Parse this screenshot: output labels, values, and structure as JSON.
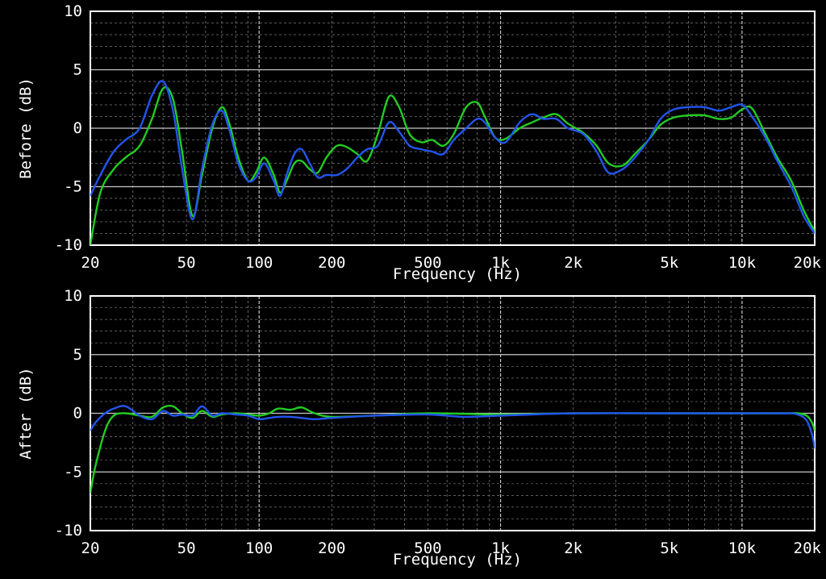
{
  "colors": {
    "background": "#000000",
    "grid": "#7a7a7a",
    "axis": "#ffffff",
    "text": "#ffffff"
  },
  "chart_data": [
    {
      "type": "line",
      "title": "",
      "xlabel": "Frequency (Hz)",
      "ylabel": "Before (dB)",
      "xscale": "log",
      "xlim": [
        20,
        20000
      ],
      "ylim": [
        -10,
        10
      ],
      "xtick_labels": [
        {
          "value": 20,
          "label": "20"
        },
        {
          "value": 50,
          "label": "50"
        },
        {
          "value": 100,
          "label": "100"
        },
        {
          "value": 200,
          "label": "200"
        },
        {
          "value": 500,
          "label": "500"
        },
        {
          "value": 1000,
          "label": "1k"
        },
        {
          "value": 2000,
          "label": "2k"
        },
        {
          "value": 5000,
          "label": "5k"
        },
        {
          "value": 10000,
          "label": "10k"
        },
        {
          "value": 20000,
          "label": "20k"
        }
      ],
      "yticks": [
        10,
        5,
        0,
        -5,
        -10
      ],
      "grid": true,
      "series": [
        {
          "color": "#22cc22",
          "x": [
            20,
            22,
            25,
            28,
            32,
            36,
            40,
            44,
            48,
            53,
            58,
            64,
            70,
            75,
            82,
            90,
            97,
            105,
            115,
            122,
            130,
            140,
            150,
            162,
            175,
            190,
            210,
            230,
            255,
            280,
            310,
            345,
            380,
            420,
            470,
            520,
            580,
            640,
            720,
            800,
            860,
            950,
            1050,
            1200,
            1350,
            1500,
            1700,
            1900,
            2200,
            2500,
            2800,
            3200,
            3600,
            4100,
            4600,
            5200,
            6000,
            7000,
            8000,
            9000,
            10000,
            11000,
            12500,
            14000,
            16000,
            18000,
            20000
          ],
          "y": [
            -10,
            -5.5,
            -3.5,
            -2.5,
            -1.5,
            0.8,
            3.4,
            2.5,
            -2.0,
            -7.5,
            -4.0,
            0.0,
            1.8,
            0.5,
            -2.5,
            -4.5,
            -3.8,
            -2.5,
            -4.0,
            -5.5,
            -4.5,
            -3.0,
            -2.8,
            -3.5,
            -3.8,
            -2.5,
            -1.5,
            -1.6,
            -2.2,
            -2.8,
            -0.5,
            2.7,
            1.8,
            -0.5,
            -1.2,
            -1.0,
            -1.5,
            -0.5,
            1.8,
            2.2,
            1.0,
            -0.8,
            -0.9,
            0.0,
            0.5,
            0.9,
            1.2,
            0.4,
            -0.4,
            -1.5,
            -3.0,
            -3.2,
            -2.2,
            -1.0,
            0.3,
            0.9,
            1.1,
            1.1,
            0.8,
            0.9,
            1.6,
            1.7,
            -0.5,
            -2.5,
            -4.5,
            -7.0,
            -8.8
          ]
        },
        {
          "color": "#2255ee",
          "x": [
            20,
            22,
            25,
            28,
            32,
            36,
            40,
            44,
            48,
            53,
            58,
            64,
            70,
            75,
            82,
            90,
            97,
            105,
            115,
            122,
            130,
            140,
            150,
            162,
            175,
            190,
            210,
            230,
            255,
            280,
            310,
            345,
            380,
            420,
            470,
            520,
            580,
            640,
            720,
            800,
            860,
            950,
            1050,
            1200,
            1350,
            1500,
            1700,
            1900,
            2200,
            2500,
            2800,
            3200,
            3600,
            4100,
            4600,
            5200,
            6000,
            7000,
            8000,
            9000,
            10000,
            11000,
            12500,
            14000,
            16000,
            18000,
            20000
          ],
          "y": [
            -5.8,
            -4.0,
            -2.0,
            -1.0,
            0.0,
            2.8,
            4.0,
            1.5,
            -3.5,
            -7.8,
            -3.5,
            0.3,
            1.5,
            0.0,
            -3.0,
            -4.5,
            -4.2,
            -3.0,
            -4.5,
            -5.8,
            -4.0,
            -2.2,
            -1.8,
            -3.0,
            -4.2,
            -4.0,
            -4.0,
            -3.5,
            -2.5,
            -1.8,
            -1.5,
            0.5,
            -0.3,
            -1.5,
            -1.8,
            -2.0,
            -2.2,
            -1.0,
            0.0,
            0.8,
            0.5,
            -0.8,
            -1.2,
            0.5,
            1.2,
            0.8,
            0.8,
            0.0,
            -0.5,
            -2.0,
            -3.8,
            -3.5,
            -2.5,
            -1.0,
            0.8,
            1.6,
            1.8,
            1.8,
            1.5,
            1.8,
            2.0,
            1.0,
            -0.8,
            -2.8,
            -5.0,
            -7.5,
            -9.0
          ]
        }
      ]
    },
    {
      "type": "line",
      "title": "",
      "xlabel": "Frequency (Hz)",
      "ylabel": "After (dB)",
      "xscale": "log",
      "xlim": [
        20,
        20000
      ],
      "ylim": [
        -10,
        10
      ],
      "xtick_labels": [
        {
          "value": 20,
          "label": "20"
        },
        {
          "value": 50,
          "label": "50"
        },
        {
          "value": 100,
          "label": "100"
        },
        {
          "value": 200,
          "label": "200"
        },
        {
          "value": 500,
          "label": "500"
        },
        {
          "value": 1000,
          "label": "1k"
        },
        {
          "value": 2000,
          "label": "2k"
        },
        {
          "value": 5000,
          "label": "5k"
        },
        {
          "value": 10000,
          "label": "10k"
        },
        {
          "value": 20000,
          "label": "20k"
        }
      ],
      "yticks": [
        10,
        5,
        0,
        -5,
        -10
      ],
      "grid": true,
      "series": [
        {
          "color": "#22cc22",
          "x": [
            20,
            21,
            23,
            25,
            28,
            32,
            36,
            40,
            44,
            48,
            53,
            58,
            64,
            70,
            80,
            90,
            100,
            110,
            120,
            135,
            150,
            170,
            200,
            300,
            500,
            1000,
            2000,
            5000,
            10000,
            15000,
            17000,
            18500,
            19500,
            20000
          ],
          "y": [
            -6.8,
            -4.5,
            -1.5,
            -0.2,
            0.0,
            -0.2,
            -0.3,
            0.5,
            0.6,
            0.0,
            -0.4,
            0.2,
            -0.3,
            -0.1,
            0.0,
            -0.1,
            -0.2,
            0.0,
            0.4,
            0.3,
            0.5,
            0.0,
            -0.3,
            -0.2,
            0.0,
            -0.1,
            0.0,
            0.0,
            0.0,
            0.0,
            0.0,
            -0.2,
            -0.8,
            -1.5
          ]
        },
        {
          "color": "#2255ee",
          "x": [
            20,
            21,
            23,
            25,
            28,
            32,
            36,
            40,
            44,
            48,
            53,
            58,
            64,
            70,
            80,
            90,
            100,
            110,
            120,
            135,
            150,
            170,
            200,
            300,
            500,
            700,
            1000,
            2000,
            5000,
            10000,
            15000,
            17000,
            18500,
            19500,
            20000
          ],
          "y": [
            -1.5,
            -0.8,
            0.0,
            0.4,
            0.6,
            -0.2,
            -0.5,
            0.2,
            -0.2,
            -0.1,
            -0.2,
            0.6,
            -0.2,
            0.0,
            -0.1,
            -0.2,
            -0.5,
            -0.4,
            -0.3,
            -0.3,
            -0.4,
            -0.5,
            -0.4,
            -0.2,
            -0.1,
            -0.3,
            -0.2,
            0.0,
            0.0,
            0.0,
            0.0,
            -0.1,
            -0.6,
            -1.8,
            -3.0
          ]
        }
      ]
    }
  ]
}
